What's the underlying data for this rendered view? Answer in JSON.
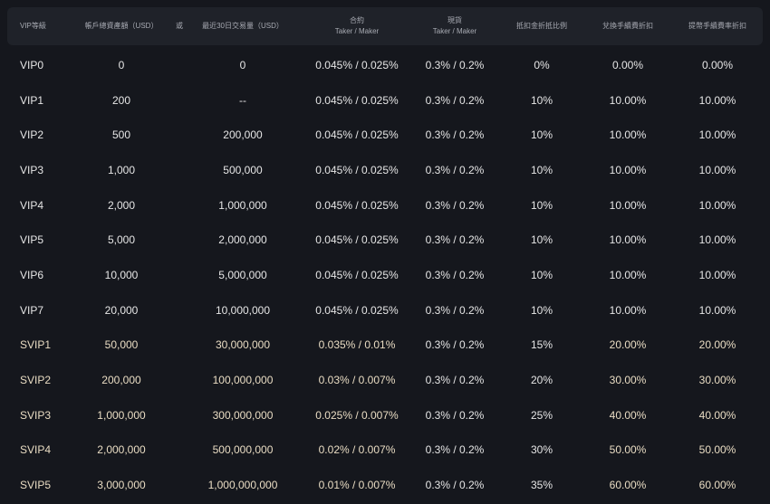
{
  "headers": {
    "level": "VIP等級",
    "assets": "帳戶總資產額（USD）",
    "or": "或",
    "volume": "最近30日交易量（USD）",
    "futures": "合約",
    "futures_sub": "Taker / Maker",
    "spot": "現貨",
    "spot_sub": "Taker / Maker",
    "deduction": "抵扣金折抵比例",
    "exchange": "兌換手續費折扣",
    "withdraw": "提幣手續費率折扣"
  },
  "colors": {
    "svip_text": "#e9dcc3",
    "background": "#15171d",
    "header": "#1f2229"
  },
  "rows": [
    {
      "level": "VIP0",
      "assets": "0",
      "volume": "0",
      "futures": "0.045% / 0.025%",
      "spot": "0.3% / 0.2%",
      "deduction": "0%",
      "exchange": "0.00%",
      "withdraw": "0.00%"
    },
    {
      "level": "VIP1",
      "assets": "200",
      "volume": "--",
      "futures": "0.045% / 0.025%",
      "spot": "0.3% / 0.2%",
      "deduction": "10%",
      "exchange": "10.00%",
      "withdraw": "10.00%"
    },
    {
      "level": "VIP2",
      "assets": "500",
      "volume": "200,000",
      "futures": "0.045% / 0.025%",
      "spot": "0.3% / 0.2%",
      "deduction": "10%",
      "exchange": "10.00%",
      "withdraw": "10.00%"
    },
    {
      "level": "VIP3",
      "assets": "1,000",
      "volume": "500,000",
      "futures": "0.045% / 0.025%",
      "spot": "0.3% / 0.2%",
      "deduction": "10%",
      "exchange": "10.00%",
      "withdraw": "10.00%"
    },
    {
      "level": "VIP4",
      "assets": "2,000",
      "volume": "1,000,000",
      "futures": "0.045% / 0.025%",
      "spot": "0.3% / 0.2%",
      "deduction": "10%",
      "exchange": "10.00%",
      "withdraw": "10.00%"
    },
    {
      "level": "VIP5",
      "assets": "5,000",
      "volume": "2,000,000",
      "futures": "0.045% / 0.025%",
      "spot": "0.3% / 0.2%",
      "deduction": "10%",
      "exchange": "10.00%",
      "withdraw": "10.00%"
    },
    {
      "level": "VIP6",
      "assets": "10,000",
      "volume": "5,000,000",
      "futures": "0.045% / 0.025%",
      "spot": "0.3% / 0.2%",
      "deduction": "10%",
      "exchange": "10.00%",
      "withdraw": "10.00%"
    },
    {
      "level": "VIP7",
      "assets": "20,000",
      "volume": "10,000,000",
      "futures": "0.045% / 0.025%",
      "spot": "0.3% / 0.2%",
      "deduction": "10%",
      "exchange": "10.00%",
      "withdraw": "10.00%"
    },
    {
      "level": "SVIP1",
      "assets": "50,000",
      "volume": "30,000,000",
      "futures": "0.035% / 0.01%",
      "spot": "0.3% / 0.2%",
      "deduction": "15%",
      "exchange": "20.00%",
      "withdraw": "20.00%"
    },
    {
      "level": "SVIP2",
      "assets": "200,000",
      "volume": "100,000,000",
      "futures": "0.03% / 0.007%",
      "spot": "0.3% / 0.2%",
      "deduction": "20%",
      "exchange": "30.00%",
      "withdraw": "30.00%"
    },
    {
      "level": "SVIP3",
      "assets": "1,000,000",
      "volume": "300,000,000",
      "futures": "0.025% / 0.007%",
      "spot": "0.3% / 0.2%",
      "deduction": "25%",
      "exchange": "40.00%",
      "withdraw": "40.00%"
    },
    {
      "level": "SVIP4",
      "assets": "2,000,000",
      "volume": "500,000,000",
      "futures": "0.02% / 0.007%",
      "spot": "0.3% / 0.2%",
      "deduction": "30%",
      "exchange": "50.00%",
      "withdraw": "50.00%"
    },
    {
      "level": "SVIP5",
      "assets": "3,000,000",
      "volume": "1,000,000,000",
      "futures": "0.01% / 0.007%",
      "spot": "0.3% / 0.2%",
      "deduction": "35%",
      "exchange": "60.00%",
      "withdraw": "60.00%"
    }
  ]
}
